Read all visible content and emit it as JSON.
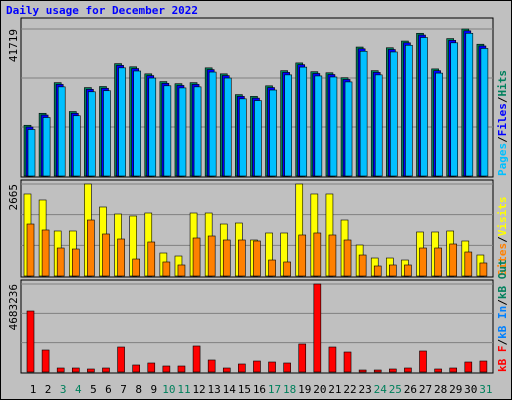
{
  "title": "Daily usage for December 2022",
  "legend_separator": "/",
  "chart_data": [
    {
      "type": "bar",
      "ylim": [
        0,
        41719
      ],
      "yticks": [
        41719
      ],
      "series": [
        {
          "name": "Pages",
          "color": "#00c0ff",
          "values": [
            13200,
            16600,
            25300,
            17100,
            23900,
            24200,
            30700,
            29800,
            27800,
            25600,
            25000,
            25300,
            29500,
            27800,
            21900,
            21400,
            24400,
            28700,
            30900,
            28400,
            28100,
            26700,
            35400,
            28700,
            35200,
            37100,
            39300,
            29200,
            37800,
            40500,
            36200
          ]
        },
        {
          "name": "Files",
          "color": "#0000ff",
          "values": [
            13900,
            17300,
            26000,
            17800,
            24600,
            24900,
            31400,
            30500,
            28500,
            26300,
            25700,
            26000,
            30200,
            28500,
            22600,
            22100,
            25100,
            29400,
            31600,
            29100,
            28800,
            27400,
            36100,
            29400,
            35900,
            37800,
            40000,
            29900,
            38500,
            41200,
            36900
          ]
        },
        {
          "name": "Hits",
          "color": "#00805c",
          "values": [
            14400,
            17800,
            26500,
            18300,
            25100,
            25400,
            31900,
            31000,
            29000,
            26800,
            26200,
            26500,
            30700,
            29000,
            23100,
            22600,
            25600,
            29900,
            32100,
            29600,
            29300,
            27900,
            36600,
            29900,
            36400,
            38300,
            40500,
            30400,
            39000,
            41719,
            37400
          ]
        }
      ]
    },
    {
      "type": "bar",
      "ylim": [
        0,
        2665
      ],
      "yticks": [
        2665
      ],
      "series": [
        {
          "name": "Sites",
          "color": "#ff8000",
          "values": [
            1506,
            1333,
            811,
            782,
            1622,
            1217,
            1072,
            492,
            985,
            406,
            319,
            1101,
            1159,
            1043,
            1043,
            1014,
            463,
            406,
            1188,
            1246,
            1188,
            1043,
            608,
            290,
            319,
            319,
            811,
            811,
            927,
            695,
            377
          ]
        },
        {
          "name": "Visits",
          "color": "#ffff00",
          "values": [
            2376,
            2202,
            1304,
            1304,
            2665,
            1999,
            1796,
            1738,
            1825,
            666,
            579,
            1825,
            1825,
            1506,
            1535,
            1043,
            1246,
            1246,
            2665,
            2376,
            2376,
            1622,
            898,
            521,
            521,
            463,
            1275,
            1275,
            1304,
            1014,
            608
          ]
        }
      ]
    },
    {
      "type": "bar",
      "ylim": [
        0,
        4683236
      ],
      "yticks": [
        4683236
      ],
      "categories": [
        "1",
        "2",
        "3",
        "4",
        "5",
        "6",
        "7",
        "8",
        "9",
        "10",
        "11",
        "12",
        "13",
        "14",
        "15",
        "16",
        "17",
        "18",
        "19",
        "20",
        "21",
        "22",
        "23",
        "24",
        "25",
        "26",
        "27",
        "28",
        "29",
        "30",
        "31"
      ],
      "category_colors": [
        "#000000",
        "#000000",
        "#00805c",
        "#00805c",
        "#000000",
        "#000000",
        "#000000",
        "#000000",
        "#000000",
        "#00805c",
        "#00805c",
        "#000000",
        "#000000",
        "#000000",
        "#000000",
        "#000000",
        "#00805c",
        "#00805c",
        "#000000",
        "#000000",
        "#000000",
        "#000000",
        "#000000",
        "#00805c",
        "#00805c",
        "#000000",
        "#000000",
        "#000000",
        "#000000",
        "#000000",
        "#00805c"
      ],
      "series": [
        {
          "name": "kB F",
          "color": "#ff0000",
          "values": [
            3246000,
            1171000,
            213000,
            213000,
            160000,
            213000,
            1330000,
            373000,
            479000,
            319000,
            319000,
            1384000,
            639000,
            213000,
            426000,
            585000,
            532000,
            479000,
            1490000,
            4683236,
            1330000,
            1064000,
            106000,
            106000,
            160000,
            213000,
            1118000,
            160000,
            213000,
            532000,
            585000
          ]
        },
        {
          "name": "kB In",
          "color": "#0080ff"
        },
        {
          "name": "kB Out",
          "color": "#00805c"
        }
      ]
    }
  ]
}
